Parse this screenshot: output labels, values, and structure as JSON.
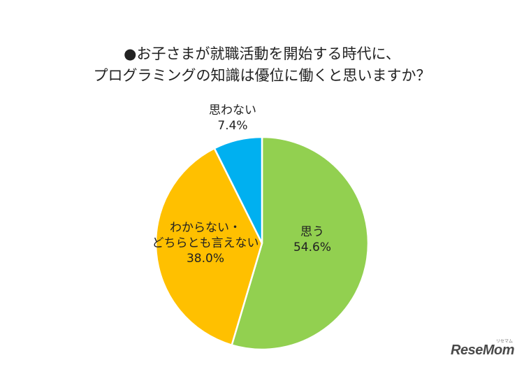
{
  "chart_data": {
    "type": "pie",
    "title_lines": [
      "●お子さまが就職活動を開始する時代に、",
      "プログラミングの知識は優位に働くと思いますか？"
    ],
    "slices": [
      {
        "label_lines": [
          "思う"
        ],
        "value": 54.6,
        "value_label": "54.6%",
        "color": "#92d050"
      },
      {
        "label_lines": [
          "わからない・",
          "どちらとも言えない"
        ],
        "value": 38.0,
        "value_label": "38.0%",
        "color": "#ffc000"
      },
      {
        "label_lines": [
          "思わない"
        ],
        "value": 7.4,
        "value_label": "7.4%",
        "color": "#00b0f0"
      }
    ],
    "start": "12 o'clock",
    "direction": "clockwise"
  },
  "brand": {
    "logo_text": "ReseMom",
    "logo_subtext": "リセマム"
  }
}
